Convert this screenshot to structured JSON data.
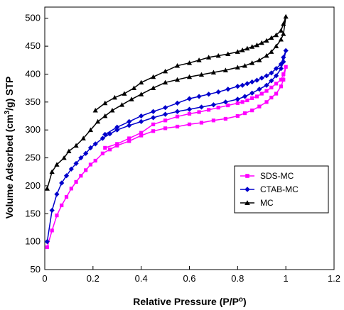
{
  "chart_data": {
    "type": "line",
    "xlabel": "Relative Pressure (P/P",
    "xlabel_sup": "o",
    "xlabel_end": ")",
    "ylabel_pre": "Volume Adsorbed (cm",
    "ylabel_sup": "3",
    "ylabel_post": "/g) STP",
    "xlim": [
      0,
      1.2
    ],
    "ylim": [
      50,
      520
    ],
    "xticks": [
      "0",
      "0.2",
      "0.4",
      "0.6",
      "0.8",
      "1",
      "1.2"
    ],
    "yticks": [
      "50",
      "100",
      "150",
      "200",
      "250",
      "300",
      "350",
      "400",
      "450",
      "500"
    ],
    "grid": false,
    "legend": "center-right",
    "series": [
      {
        "name": "SDS-MC",
        "color": "#ff00ff",
        "marker": "square",
        "x": [
          0.01,
          0.03,
          0.05,
          0.07,
          0.09,
          0.11,
          0.13,
          0.15,
          0.17,
          0.19,
          0.21,
          0.24,
          0.27,
          0.3,
          0.35,
          0.4,
          0.45,
          0.5,
          0.55,
          0.6,
          0.65,
          0.7,
          0.75,
          0.8,
          0.83,
          0.86,
          0.89,
          0.92,
          0.94,
          0.96,
          0.98,
          0.99,
          1.0,
          0.99,
          0.98,
          0.96,
          0.94,
          0.92,
          0.9,
          0.88,
          0.86,
          0.84,
          0.82,
          0.8,
          0.76,
          0.72,
          0.68,
          0.64,
          0.6,
          0.55,
          0.5,
          0.45,
          0.4,
          0.35,
          0.3,
          0.25
        ],
        "y": [
          90,
          120,
          147,
          165,
          180,
          195,
          207,
          218,
          228,
          238,
          245,
          258,
          265,
          272,
          280,
          290,
          298,
          303,
          306,
          310,
          313,
          317,
          320,
          325,
          330,
          335,
          342,
          350,
          358,
          365,
          378,
          390,
          413,
          400,
          390,
          383,
          376,
          370,
          365,
          360,
          357,
          353,
          350,
          348,
          344,
          340,
          336,
          332,
          329,
          324,
          317,
          310,
          295,
          285,
          275,
          268
        ]
      },
      {
        "name": "CTAB-MC",
        "color": "#0000cc",
        "marker": "diamond",
        "x": [
          0.01,
          0.03,
          0.05,
          0.07,
          0.09,
          0.11,
          0.13,
          0.15,
          0.17,
          0.19,
          0.21,
          0.24,
          0.27,
          0.3,
          0.35,
          0.4,
          0.45,
          0.5,
          0.55,
          0.6,
          0.65,
          0.7,
          0.75,
          0.8,
          0.83,
          0.86,
          0.89,
          0.92,
          0.94,
          0.96,
          0.98,
          0.99,
          1.0,
          0.99,
          0.98,
          0.96,
          0.94,
          0.92,
          0.9,
          0.88,
          0.86,
          0.84,
          0.82,
          0.8,
          0.76,
          0.72,
          0.68,
          0.64,
          0.6,
          0.55,
          0.5,
          0.45,
          0.4,
          0.35,
          0.3,
          0.25
        ],
        "y": [
          100,
          156,
          185,
          205,
          218,
          230,
          240,
          250,
          258,
          268,
          275,
          285,
          293,
          300,
          308,
          315,
          322,
          328,
          333,
          337,
          341,
          345,
          350,
          355,
          360,
          366,
          373,
          380,
          388,
          397,
          410,
          422,
          442,
          430,
          418,
          410,
          402,
          397,
          393,
          389,
          386,
          383,
          380,
          378,
          373,
          368,
          364,
          360,
          356,
          348,
          340,
          333,
          325,
          315,
          305,
          292
        ]
      },
      {
        "name": "MC",
        "color": "#000000",
        "marker": "triangle",
        "x": [
          0.01,
          0.03,
          0.05,
          0.08,
          0.1,
          0.13,
          0.16,
          0.19,
          0.22,
          0.25,
          0.28,
          0.32,
          0.36,
          0.4,
          0.45,
          0.5,
          0.55,
          0.6,
          0.65,
          0.7,
          0.75,
          0.8,
          0.83,
          0.86,
          0.89,
          0.92,
          0.94,
          0.96,
          0.98,
          0.99,
          1.0,
          0.99,
          0.98,
          0.96,
          0.94,
          0.92,
          0.9,
          0.88,
          0.86,
          0.84,
          0.82,
          0.8,
          0.76,
          0.72,
          0.68,
          0.64,
          0.6,
          0.55,
          0.5,
          0.45,
          0.4,
          0.37,
          0.33,
          0.29,
          0.25,
          0.21
        ],
        "y": [
          195,
          225,
          238,
          250,
          262,
          272,
          285,
          300,
          315,
          325,
          335,
          345,
          355,
          364,
          375,
          385,
          390,
          395,
          399,
          403,
          407,
          412,
          415,
          420,
          425,
          433,
          440,
          450,
          462,
          472,
          503,
          490,
          478,
          470,
          465,
          460,
          456,
          452,
          449,
          446,
          443,
          440,
          436,
          433,
          430,
          425,
          420,
          415,
          405,
          395,
          385,
          375,
          365,
          358,
          348,
          335
        ]
      }
    ]
  }
}
